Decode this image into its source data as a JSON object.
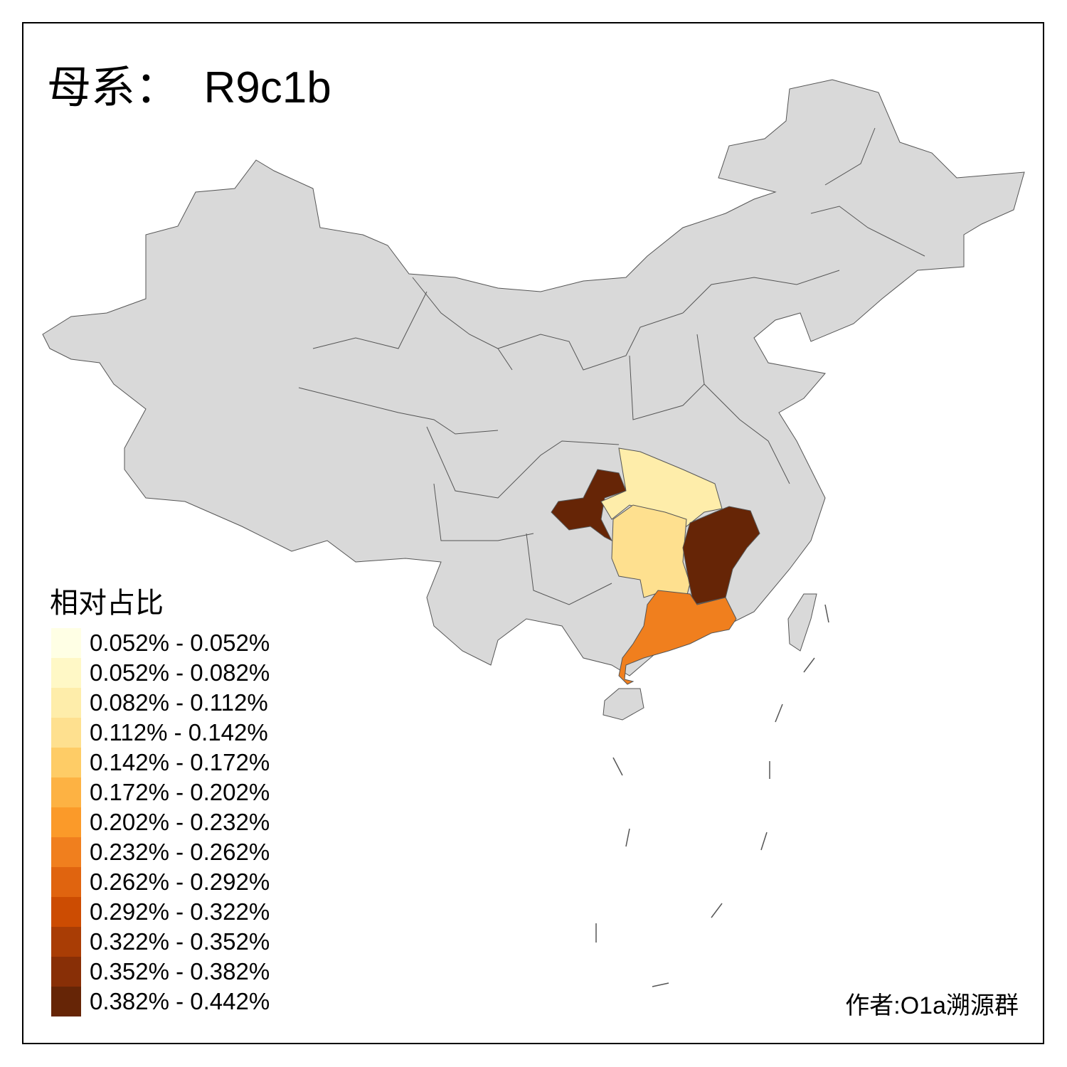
{
  "title": "母系：  R9c1b",
  "legend": {
    "title": "相对占比",
    "items": [
      {
        "label": "0.052% - 0.052%",
        "color": "#FFFFE5"
      },
      {
        "label": "0.052% - 0.082%",
        "color": "#FFF8C6"
      },
      {
        "label": "0.082% - 0.112%",
        "color": "#FEEDAA"
      },
      {
        "label": "0.112% - 0.142%",
        "color": "#FEE08F"
      },
      {
        "label": "0.142% - 0.172%",
        "color": "#FECC66"
      },
      {
        "label": "0.172% - 0.202%",
        "color": "#FDB243"
      },
      {
        "label": "0.202% - 0.232%",
        "color": "#FB9A29"
      },
      {
        "label": "0.232% - 0.262%",
        "color": "#F07F1E"
      },
      {
        "label": "0.262% - 0.292%",
        "color": "#E0640F"
      },
      {
        "label": "0.292% - 0.322%",
        "color": "#CC4C02"
      },
      {
        "label": "0.322% - 0.352%",
        "color": "#A93D05"
      },
      {
        "label": "0.352% - 0.382%",
        "color": "#882F06"
      },
      {
        "label": "0.382% - 0.442%",
        "color": "#662506"
      }
    ]
  },
  "map": {
    "no_data_color": "#D9D9D9",
    "border_color": "#555555",
    "highlighted_regions_bins": [
      12,
      2,
      3,
      12,
      0,
      7
    ]
  },
  "author": "作者:O1a溯源群"
}
